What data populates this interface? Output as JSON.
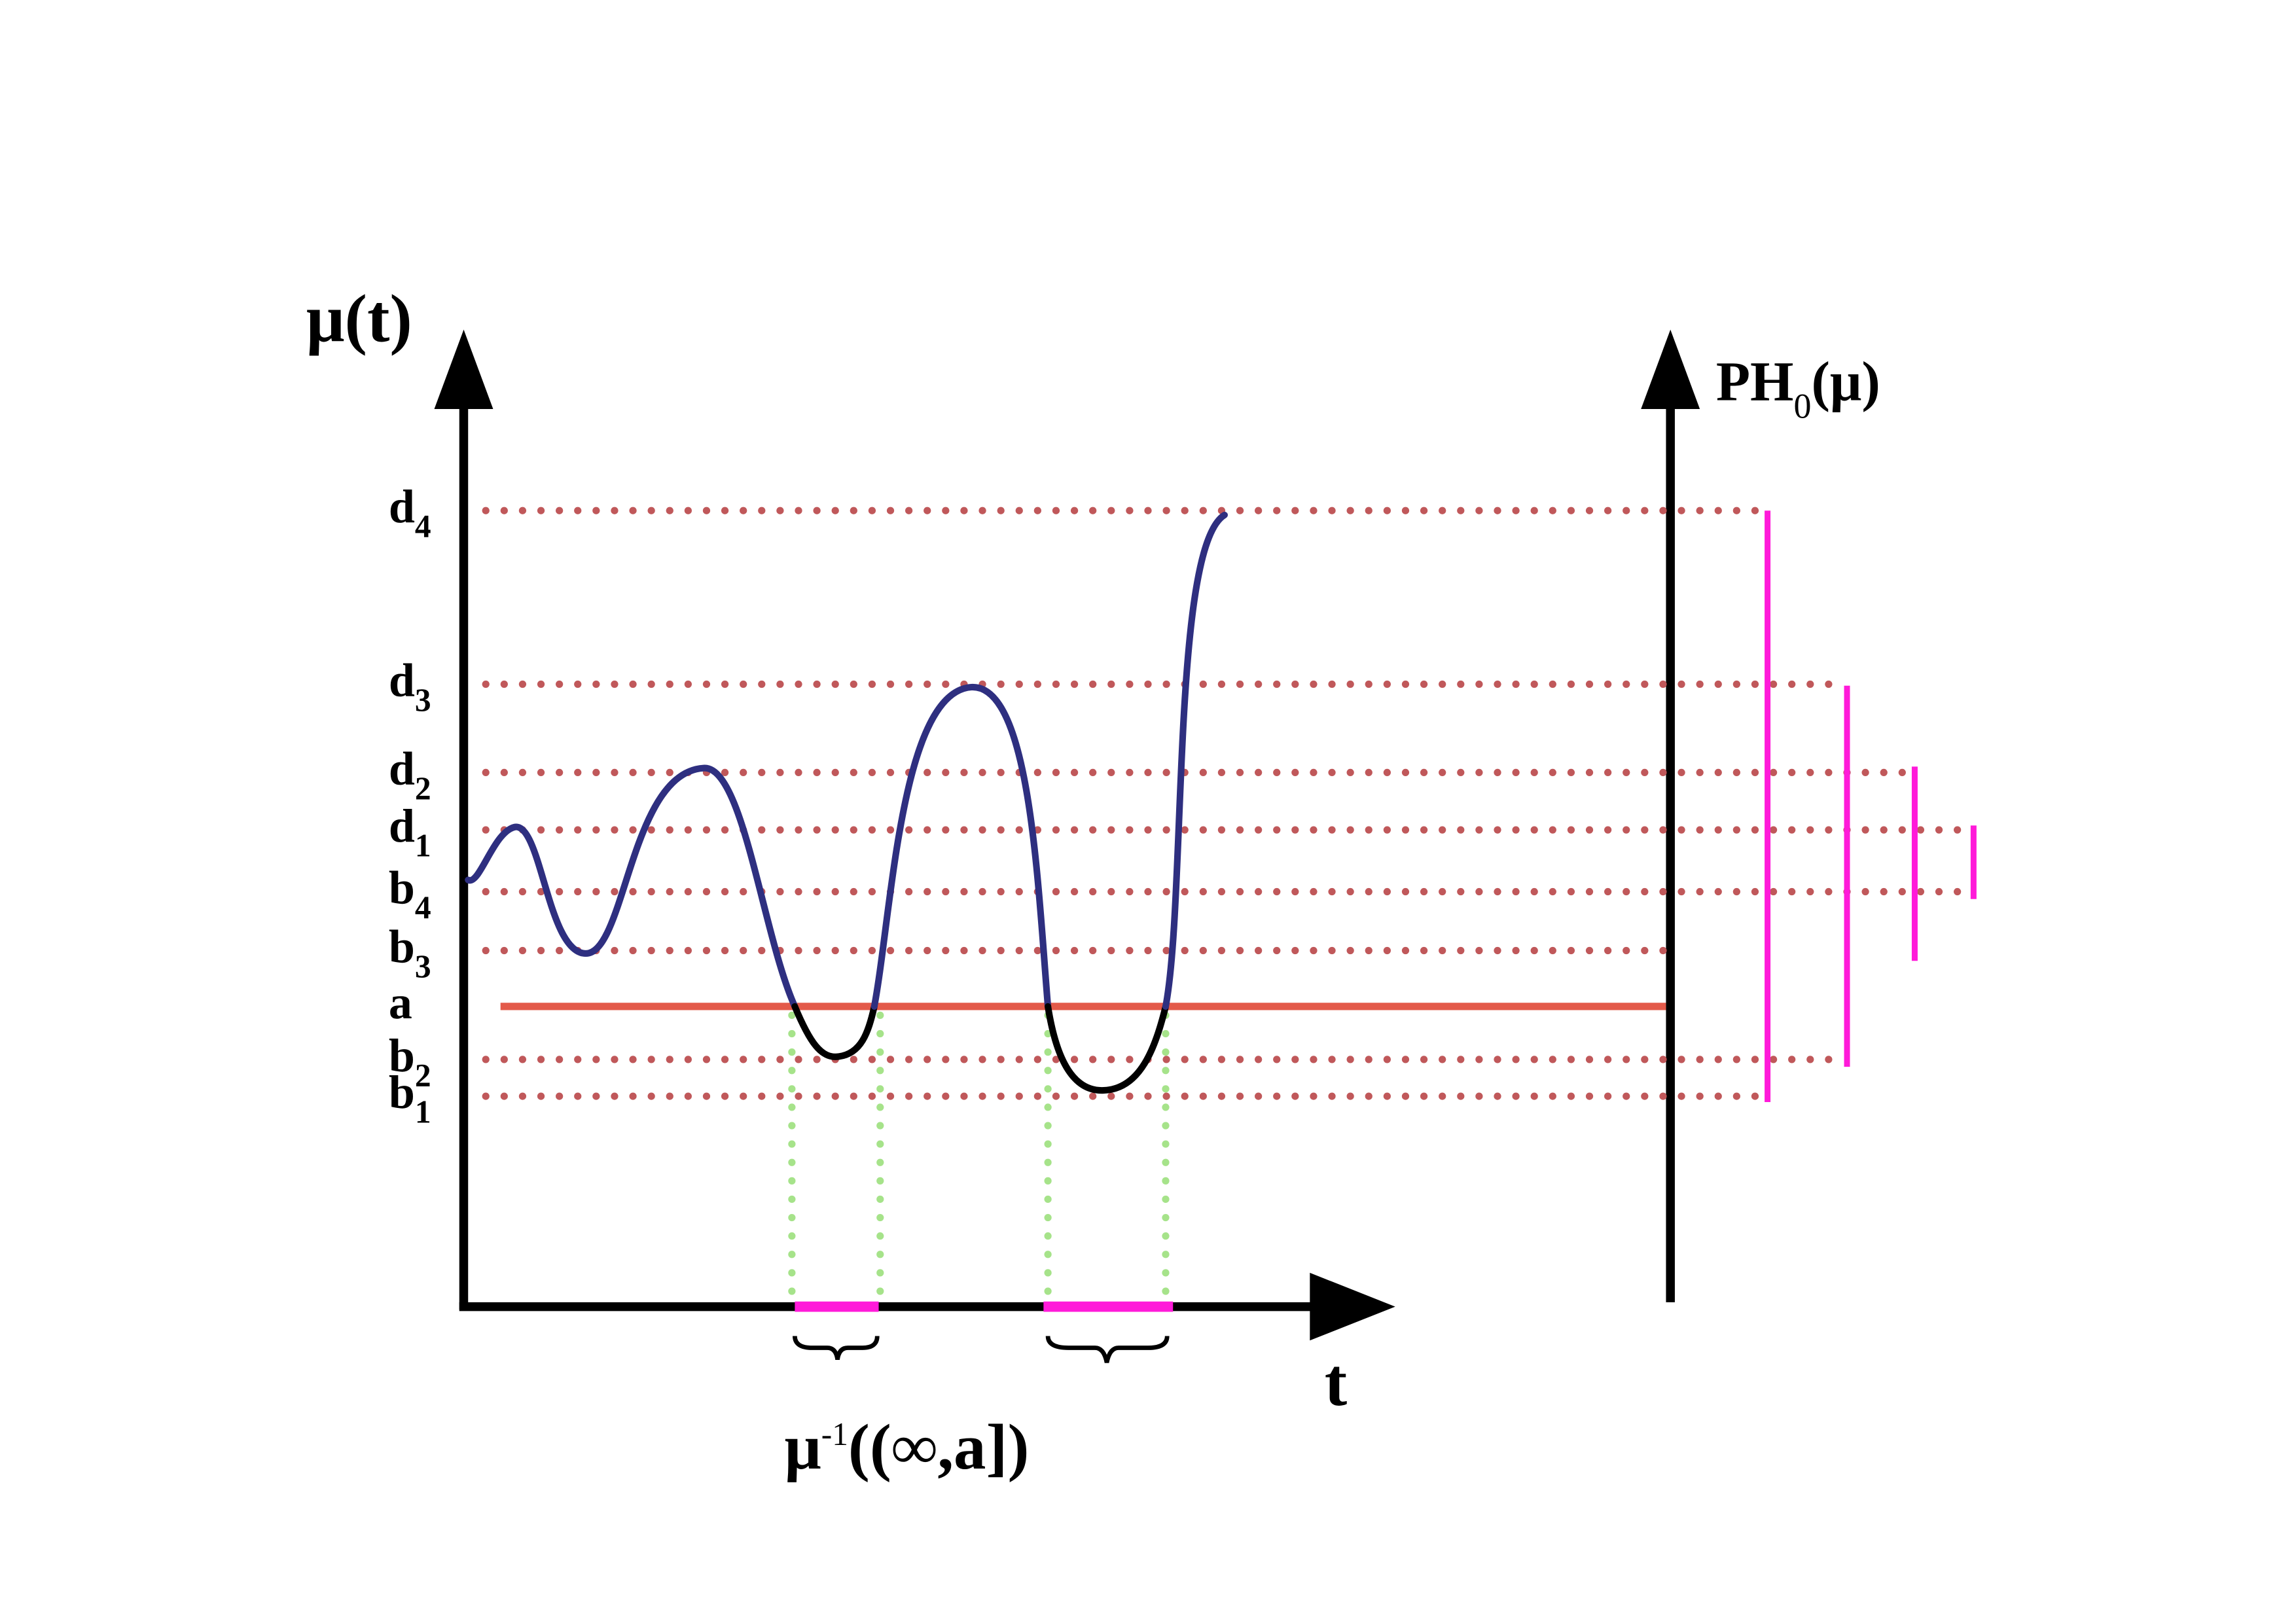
{
  "axes": {
    "y_label": "μ(t)",
    "x_label": "t",
    "ph_label": {
      "base": "PH",
      "sub": "0",
      "rest": "(μ)"
    }
  },
  "levels": [
    {
      "base": "d",
      "sub": "4"
    },
    {
      "base": "d",
      "sub": "3"
    },
    {
      "base": "d",
      "sub": "2"
    },
    {
      "base": "d",
      "sub": "1"
    },
    {
      "base": "b",
      "sub": "4"
    },
    {
      "base": "b",
      "sub": "3"
    },
    {
      "base": "a"
    },
    {
      "base": "b",
      "sub": "2"
    },
    {
      "base": "b",
      "sub": "1"
    }
  ],
  "preimage_label": {
    "base": "μ",
    "sup": "-1",
    "rest": "((∞,a])"
  }
}
